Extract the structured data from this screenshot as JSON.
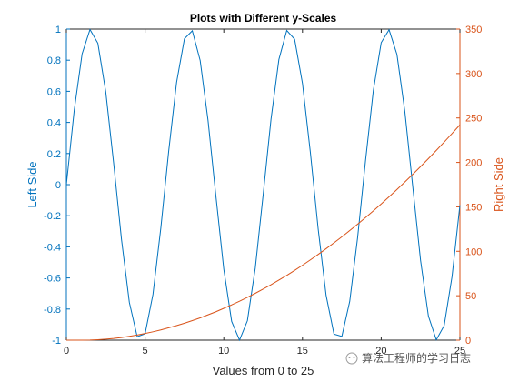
{
  "chart_data": {
    "type": "line",
    "title": "Plots with Different y-Scales",
    "xlabel": "Values from 0 to 25",
    "ylabel_left": "Left Side",
    "ylabel_right": "Right Side",
    "xlim": [
      0,
      25
    ],
    "ylim_left": [
      -1,
      1
    ],
    "ylim_right": [
      0,
      350
    ],
    "x_ticks": [
      "0",
      "5",
      "10",
      "15",
      "20",
      "25"
    ],
    "y_ticks_left": [
      "-1",
      "-0.8",
      "-0.6",
      "-0.4",
      "-0.2",
      "0",
      "0.2",
      "0.4",
      "0.6",
      "0.8",
      "1"
    ],
    "y_ticks_right": [
      "0",
      "50",
      "100",
      "150",
      "200",
      "250",
      "300",
      "350"
    ],
    "grid": false,
    "series": [
      {
        "axis": "left",
        "color": "#0072BD",
        "x": [
          0,
          0.5,
          1,
          1.5,
          2,
          2.5,
          3,
          3.5,
          4,
          4.5,
          5,
          5.5,
          6,
          6.5,
          7,
          7.5,
          8,
          8.5,
          9,
          9.5,
          10,
          10.5,
          11,
          11.5,
          12,
          12.5,
          13,
          13.5,
          14,
          14.5,
          15,
          15.5,
          16,
          16.5,
          17,
          17.5,
          18,
          18.5,
          19,
          19.5,
          20,
          20.5,
          21,
          21.5,
          22,
          22.5,
          23,
          23.5,
          24,
          24.5,
          25
        ],
        "y": [
          0,
          0.479,
          0.841,
          0.997,
          0.909,
          0.598,
          0.141,
          -0.351,
          -0.757,
          -0.978,
          -0.959,
          -0.706,
          -0.279,
          0.215,
          0.657,
          0.938,
          0.989,
          0.798,
          0.412,
          -0.075,
          -0.544,
          -0.88,
          -1.0,
          -0.875,
          -0.537,
          -0.066,
          0.42,
          0.804,
          0.991,
          0.935,
          0.65,
          0.207,
          -0.288,
          -0.712,
          -0.961,
          -0.976,
          -0.751,
          -0.342,
          0.15,
          0.605,
          0.913,
          0.996,
          0.837,
          0.472,
          -0.009,
          -0.487,
          -0.846,
          -0.998,
          -0.906,
          -0.591,
          -0.132
        ]
      },
      {
        "axis": "right",
        "color": "#D95319",
        "x": [
          0,
          0.5,
          1,
          1.5,
          2,
          2.5,
          3,
          3.5,
          4,
          4.5,
          5,
          5.5,
          6,
          6.5,
          7,
          7.5,
          8,
          8.5,
          9,
          9.5,
          10,
          10.5,
          11,
          11.5,
          12,
          12.5,
          13,
          13.5,
          14,
          14.5,
          15,
          15.5,
          16,
          16.5,
          17,
          17.5,
          18,
          18.5,
          19,
          19.5,
          20,
          20.5,
          21,
          21.5,
          22,
          22.5,
          23,
          23.5,
          24,
          24.5,
          25
        ],
        "y": [
          0,
          0,
          0,
          0.1,
          0.5,
          1.1,
          1.9,
          3.0,
          4.3,
          5.8,
          7.5,
          9.4,
          11.5,
          13.9,
          16.4,
          19.1,
          22.0,
          25.1,
          28.5,
          32.0,
          35.8,
          39.7,
          43.8,
          48.2,
          52.7,
          57.5,
          62.4,
          67.6,
          72.9,
          78.5,
          84.3,
          90.3,
          96.5,
          102.9,
          109.5,
          116.3,
          123.3,
          130.5,
          137.9,
          145.5,
          153.3,
          161.3,
          169.5,
          177.9,
          186.5,
          195.3,
          204.3,
          213.5,
          222.9,
          232.5,
          242.3
        ]
      }
    ],
    "colors": {
      "left_axis": "#0072BD",
      "right_axis": "#D95319",
      "box": "#262626"
    }
  },
  "watermark": {
    "text": "算法工程师的学习日志"
  }
}
